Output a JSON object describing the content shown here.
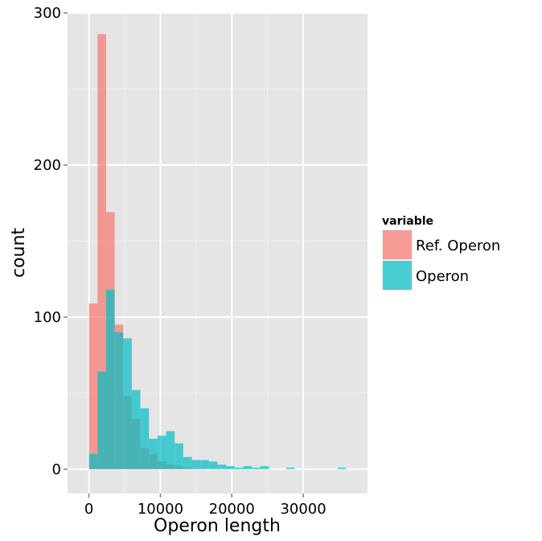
{
  "chart_data": {
    "type": "bar",
    "subtype": "overlapping-histogram",
    "xlabel": "Operon length",
    "ylabel": "count",
    "xlim": [
      -3000,
      39000
    ],
    "ylim": [
      -16,
      300
    ],
    "x_ticks": [
      0,
      10000,
      20000,
      30000
    ],
    "x_tick_labels": [
      "0",
      "10000",
      "20000",
      "30000"
    ],
    "y_ticks": [
      0,
      100,
      200,
      300
    ],
    "y_tick_labels": [
      "0",
      "100",
      "200",
      "300"
    ],
    "grid": true,
    "bin_width": 1200,
    "legend": {
      "title": "variable",
      "placement": "right",
      "entries": [
        {
          "label": "Ref. Operon",
          "color": "#F8766D"
        },
        {
          "label": "Operon",
          "color": "#00BFC4"
        }
      ]
    },
    "series": [
      {
        "name": "Ref. Operon",
        "color": "#F8766D",
        "bins": [
          {
            "x0": 0,
            "x1": 1200,
            "count": 109
          },
          {
            "x0": 1200,
            "x1": 2400,
            "count": 286
          },
          {
            "x0": 2400,
            "x1": 3600,
            "count": 169
          },
          {
            "x0": 3600,
            "x1": 4800,
            "count": 95
          },
          {
            "x0": 4800,
            "x1": 6000,
            "count": 48
          },
          {
            "x0": 6000,
            "x1": 7200,
            "count": 33
          },
          {
            "x0": 7200,
            "x1": 8400,
            "count": 14
          },
          {
            "x0": 8400,
            "x1": 9600,
            "count": 10
          },
          {
            "x0": 9600,
            "x1": 10800,
            "count": 5
          },
          {
            "x0": 10800,
            "x1": 12000,
            "count": 3
          },
          {
            "x0": 12000,
            "x1": 13200,
            "count": 2
          },
          {
            "x0": 13200,
            "x1": 14400,
            "count": 1
          }
        ]
      },
      {
        "name": "Operon",
        "color": "#00BFC4",
        "bins": [
          {
            "x0": 0,
            "x1": 1200,
            "count": 10
          },
          {
            "x0": 1200,
            "x1": 2400,
            "count": 64
          },
          {
            "x0": 2400,
            "x1": 3600,
            "count": 118
          },
          {
            "x0": 3600,
            "x1": 4800,
            "count": 90
          },
          {
            "x0": 4800,
            "x1": 6000,
            "count": 86
          },
          {
            "x0": 6000,
            "x1": 7200,
            "count": 52
          },
          {
            "x0": 7200,
            "x1": 8400,
            "count": 40
          },
          {
            "x0": 8400,
            "x1": 9600,
            "count": 20
          },
          {
            "x0": 9600,
            "x1": 10800,
            "count": 22
          },
          {
            "x0": 10800,
            "x1": 12000,
            "count": 25
          },
          {
            "x0": 12000,
            "x1": 13200,
            "count": 17
          },
          {
            "x0": 13200,
            "x1": 14400,
            "count": 8
          },
          {
            "x0": 14400,
            "x1": 15600,
            "count": 6
          },
          {
            "x0": 15600,
            "x1": 16800,
            "count": 6
          },
          {
            "x0": 16800,
            "x1": 18000,
            "count": 5
          },
          {
            "x0": 18000,
            "x1": 19200,
            "count": 3
          },
          {
            "x0": 19200,
            "x1": 20400,
            "count": 2
          },
          {
            "x0": 20400,
            "x1": 21600,
            "count": 1
          },
          {
            "x0": 21600,
            "x1": 22800,
            "count": 2
          },
          {
            "x0": 22800,
            "x1": 24000,
            "count": 1
          },
          {
            "x0": 24000,
            "x1": 25200,
            "count": 2
          },
          {
            "x0": 27600,
            "x1": 28800,
            "count": 1
          },
          {
            "x0": 34800,
            "x1": 36000,
            "count": 1
          }
        ]
      }
    ]
  }
}
